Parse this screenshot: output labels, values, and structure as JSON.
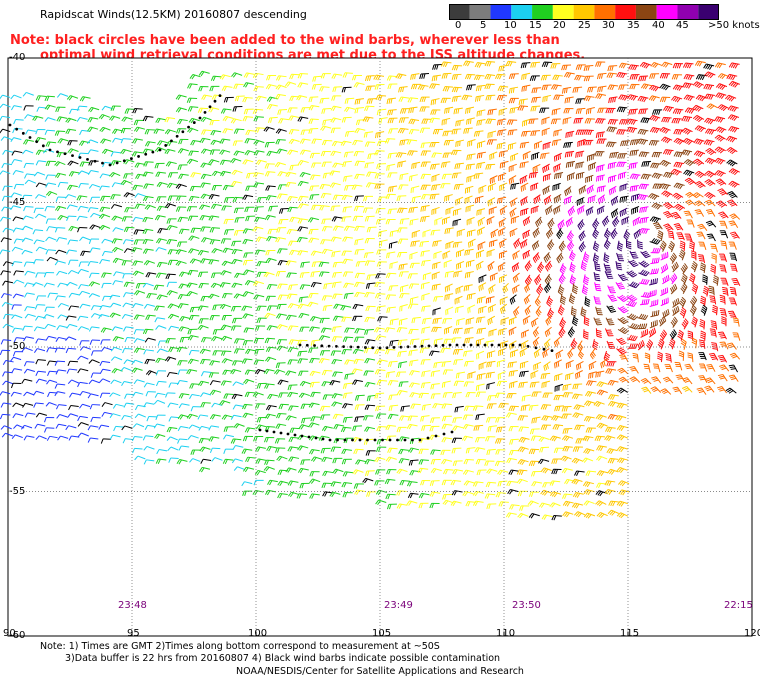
{
  "title": "Rapidscat Winds(12.5KM) 20160807 descending",
  "note_line1": "Note: black circles have been added to the wind barbs, wherever less than",
  "note_line2": "optimal wind retrieval conditions are met due to the ISS altitude changes.",
  "legend": {
    "labels": [
      "0",
      "5",
      "10",
      "15",
      "20",
      "25",
      "30",
      "35",
      "40",
      "45",
      ">50 knots"
    ],
    "colors": [
      "#3c3c3c",
      "#7c7c7c",
      "#2038ff",
      "#1cd0f0",
      "#20d020",
      "#ffff20",
      "#ffc800",
      "#ff7000",
      "#ff1010",
      "#8b4513",
      "#ff00ff",
      "#9000b0",
      "#3a0070"
    ]
  },
  "axes": {
    "x_ticks": [
      "90",
      "95",
      "100",
      "105",
      "110",
      "115",
      "120"
    ],
    "y_ticks": [
      "-40",
      "-45",
      "-50",
      "-55",
      "-60"
    ]
  },
  "times": [
    "23:48",
    "23:49",
    "23:50",
    "22:15"
  ],
  "footer": {
    "line1": "Note: 1) Times are GMT 2)Times along bottom correspond to measurement at ~50S",
    "line2": "3)Data buffer is 22 hrs from 20160807 4) Black wind barbs indicate possible contamination",
    "line3": "NOAA/NESDIS/Center for Satellite Applications and Research"
  }
}
